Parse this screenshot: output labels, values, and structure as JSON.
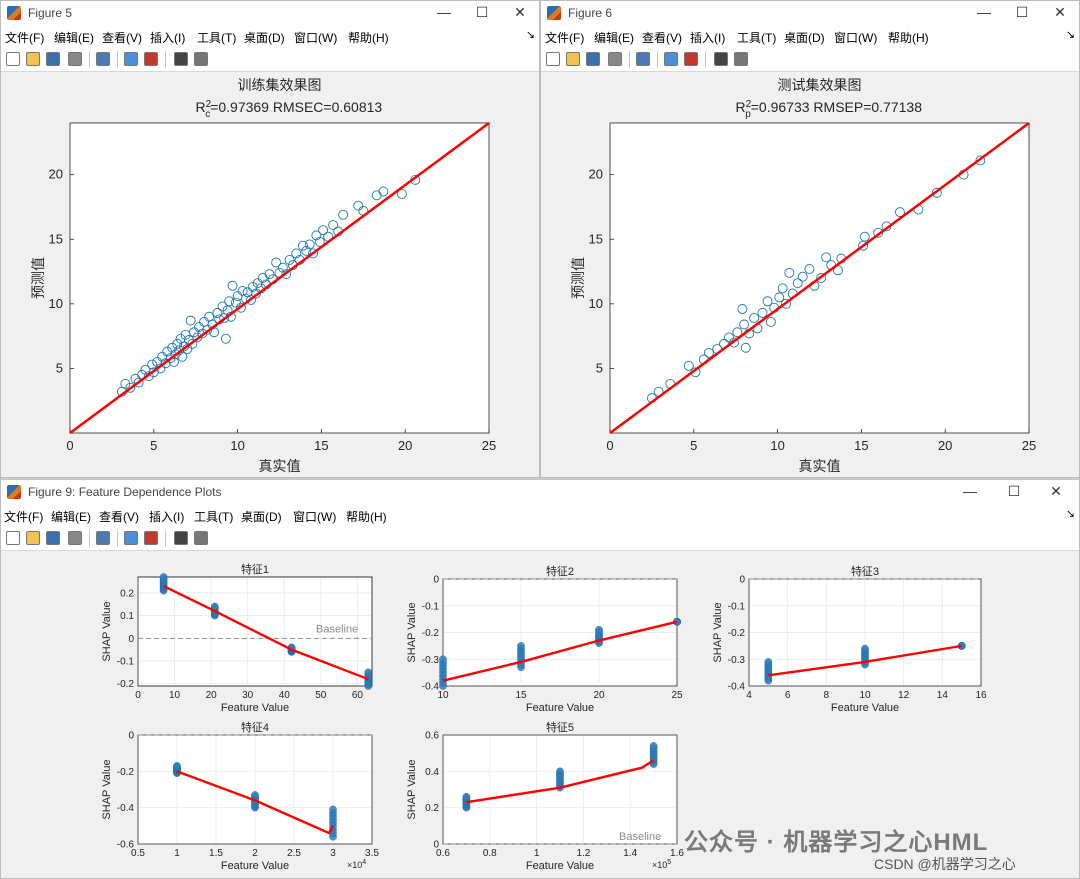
{
  "windows": [
    {
      "id": "w5",
      "title": "Figure 5",
      "axes_title": "训练集效果图",
      "metric_main": "R",
      "metric_sup": "2",
      "metric_sub": "c",
      "metric_rest": "=0.97369  RMSEC=0.60813",
      "xlabel": "真实值",
      "ylabel": "预测值"
    },
    {
      "id": "w6",
      "title": "Figure 6",
      "axes_title": "测试集效果图",
      "metric_main": "R",
      "metric_sup": "2",
      "metric_sub": "p",
      "metric_rest": "=0.96733  RMSEP=0.77138",
      "xlabel": "真实值",
      "ylabel": "预测值"
    },
    {
      "id": "w9",
      "title": "Figure 9: Feature Dependence Plots"
    }
  ],
  "menu": {
    "items": [
      "文件(F)",
      "编辑(E)",
      "查看(V)",
      "插入(I)",
      "工具(T)",
      "桌面(D)",
      "窗口(W)",
      "帮助(H)"
    ],
    "items_w9": [
      "文件(F)",
      "编辑(E)",
      "查看(V)",
      "插入(I)",
      "工具(T)",
      "桌面(D)",
      "窗口(W)",
      "帮助(H)"
    ]
  },
  "toolbar_icons": [
    "new-figure-icon",
    "open-icon",
    "save-icon",
    "print-icon",
    "link-plot-icon",
    "colorbar-icon",
    "legend-icon",
    "pointer-icon",
    "property-editor-icon"
  ],
  "watermark": "公众号 · 机器学习之心HML",
  "csdn_tag": "CSDN @机器学习之心",
  "colors": {
    "scatter": "#1f77b4",
    "fit_line": "#ff0000",
    "dep_points": "#2e7fc0",
    "baseline": "#b0b0b0"
  },
  "chart_data": [
    {
      "type": "scatter",
      "title": "训练集效果图",
      "subtitle": "R²c=0.97369  RMSEC=0.60813",
      "xlabel": "真实值",
      "ylabel": "预测值",
      "xlim": [
        0,
        25
      ],
      "ylim": [
        0,
        24
      ],
      "xticks": [
        0,
        5,
        10,
        15,
        20,
        25
      ],
      "yticks": [
        5,
        10,
        15,
        20
      ],
      "reference_line": {
        "x": [
          0,
          25
        ],
        "y": [
          0,
          24
        ]
      },
      "points": [
        [
          3.1,
          3.2
        ],
        [
          3.3,
          3.8
        ],
        [
          3.6,
          3.5
        ],
        [
          3.9,
          4.2
        ],
        [
          4.1,
          3.9
        ],
        [
          4.3,
          4.5
        ],
        [
          4.5,
          4.9
        ],
        [
          4.7,
          4.4
        ],
        [
          4.9,
          5.3
        ],
        [
          5.0,
          4.7
        ],
        [
          5.2,
          5.5
        ],
        [
          5.4,
          5.0
        ],
        [
          5.5,
          5.9
        ],
        [
          5.7,
          5.4
        ],
        [
          5.8,
          6.3
        ],
        [
          6.0,
          5.8
        ],
        [
          6.1,
          6.6
        ],
        [
          6.2,
          5.5
        ],
        [
          6.3,
          6.1
        ],
        [
          6.4,
          6.9
        ],
        [
          6.5,
          6.4
        ],
        [
          6.6,
          7.3
        ],
        [
          6.7,
          5.9
        ],
        [
          6.8,
          6.7
        ],
        [
          6.9,
          7.6
        ],
        [
          7.0,
          6.5
        ],
        [
          7.1,
          7.2
        ],
        [
          7.2,
          8.7
        ],
        [
          7.3,
          6.9
        ],
        [
          7.4,
          7.8
        ],
        [
          7.6,
          7.4
        ],
        [
          7.7,
          8.2
        ],
        [
          7.9,
          7.7
        ],
        [
          8.0,
          8.6
        ],
        [
          8.2,
          8.0
        ],
        [
          8.3,
          9.0
        ],
        [
          8.5,
          8.4
        ],
        [
          8.6,
          7.8
        ],
        [
          8.8,
          9.3
        ],
        [
          8.9,
          8.8
        ],
        [
          9.1,
          9.8
        ],
        [
          9.2,
          8.9
        ],
        [
          9.3,
          7.3
        ],
        [
          9.4,
          9.5
        ],
        [
          9.5,
          10.2
        ],
        [
          9.6,
          9.0
        ],
        [
          9.7,
          11.4
        ],
        [
          9.9,
          10.1
        ],
        [
          10.0,
          10.6
        ],
        [
          10.2,
          9.7
        ],
        [
          10.3,
          11.0
        ],
        [
          10.5,
          10.4
        ],
        [
          10.6,
          10.9
        ],
        [
          10.8,
          10.3
        ],
        [
          10.9,
          11.3
        ],
        [
          11.1,
          10.8
        ],
        [
          11.2,
          11.6
        ],
        [
          11.4,
          11.2
        ],
        [
          11.5,
          12.0
        ],
        [
          11.7,
          11.5
        ],
        [
          11.9,
          12.3
        ],
        [
          12.1,
          11.9
        ],
        [
          12.3,
          13.2
        ],
        [
          12.5,
          12.4
        ],
        [
          12.7,
          12.8
        ],
        [
          12.9,
          12.3
        ],
        [
          13.1,
          13.4
        ],
        [
          13.3,
          13.0
        ],
        [
          13.5,
          13.9
        ],
        [
          13.7,
          13.4
        ],
        [
          13.9,
          14.5
        ],
        [
          14.1,
          14.1
        ],
        [
          14.3,
          14.6
        ],
        [
          14.5,
          13.9
        ],
        [
          14.7,
          15.3
        ],
        [
          14.9,
          14.8
        ],
        [
          15.1,
          15.7
        ],
        [
          15.4,
          15.2
        ],
        [
          15.7,
          16.1
        ],
        [
          16.0,
          15.6
        ],
        [
          16.3,
          16.9
        ],
        [
          17.2,
          17.6
        ],
        [
          17.5,
          17.2
        ],
        [
          18.3,
          18.4
        ],
        [
          18.7,
          18.7
        ],
        [
          19.8,
          18.5
        ],
        [
          20.6,
          19.6
        ]
      ]
    },
    {
      "type": "scatter",
      "title": "测试集效果图",
      "subtitle": "R²p=0.96733  RMSEP=0.77138",
      "xlabel": "真实值",
      "ylabel": "预测值",
      "xlim": [
        0,
        25
      ],
      "ylim": [
        0,
        24
      ],
      "xticks": [
        0,
        5,
        10,
        15,
        20,
        25
      ],
      "yticks": [
        5,
        10,
        15,
        20
      ],
      "reference_line": {
        "x": [
          0,
          25
        ],
        "y": [
          0,
          24
        ]
      },
      "points": [
        [
          2.5,
          2.7
        ],
        [
          2.9,
          3.2
        ],
        [
          3.6,
          3.8
        ],
        [
          4.7,
          5.2
        ],
        [
          5.1,
          4.7
        ],
        [
          5.6,
          5.7
        ],
        [
          5.9,
          6.2
        ],
        [
          6.4,
          6.5
        ],
        [
          6.8,
          6.9
        ],
        [
          7.1,
          7.4
        ],
        [
          7.4,
          7.0
        ],
        [
          7.6,
          7.8
        ],
        [
          7.9,
          9.6
        ],
        [
          8.0,
          8.4
        ],
        [
          8.1,
          6.6
        ],
        [
          8.3,
          7.7
        ],
        [
          8.6,
          8.9
        ],
        [
          8.8,
          8.1
        ],
        [
          9.1,
          9.3
        ],
        [
          9.4,
          10.2
        ],
        [
          9.6,
          8.6
        ],
        [
          9.8,
          9.7
        ],
        [
          10.1,
          10.5
        ],
        [
          10.3,
          11.2
        ],
        [
          10.5,
          10.0
        ],
        [
          10.7,
          12.4
        ],
        [
          10.9,
          10.8
        ],
        [
          11.2,
          11.6
        ],
        [
          11.5,
          12.1
        ],
        [
          11.9,
          12.7
        ],
        [
          12.2,
          11.4
        ],
        [
          12.6,
          12.0
        ],
        [
          12.9,
          13.6
        ],
        [
          13.2,
          13.0
        ],
        [
          13.6,
          12.6
        ],
        [
          13.8,
          13.5
        ],
        [
          15.1,
          14.5
        ],
        [
          15.2,
          15.2
        ],
        [
          16.0,
          15.5
        ],
        [
          16.5,
          16.0
        ],
        [
          17.3,
          17.1
        ],
        [
          18.4,
          17.3
        ],
        [
          19.5,
          18.6
        ],
        [
          21.1,
          20.0
        ],
        [
          22.1,
          21.1
        ]
      ]
    },
    {
      "type": "line",
      "title": "特征1",
      "xlabel": "Feature Value",
      "ylabel": "SHAP Value",
      "xlim": [
        0,
        64
      ],
      "ylim": [
        -0.21,
        0.27
      ],
      "xticks": [
        0,
        10,
        20,
        30,
        40,
        50,
        60
      ],
      "yticks": [
        -0.2,
        -0.1,
        0,
        0.1,
        0.2
      ],
      "baseline": 0,
      "baseline_label": "Baseline",
      "x": [
        7,
        21,
        42,
        63
      ],
      "y": [
        0.23,
        0.12,
        -0.05,
        -0.18
      ],
      "clusters": [
        {
          "x": 7,
          "y": [
            0.21,
            0.27
          ]
        },
        {
          "x": 21,
          "y": [
            0.1,
            0.14
          ]
        },
        {
          "x": 42,
          "y": [
            -0.06,
            -0.04
          ]
        },
        {
          "x": 63,
          "y": [
            -0.21,
            -0.15
          ]
        }
      ]
    },
    {
      "type": "line",
      "title": "特征2",
      "xlabel": "Feature Value",
      "ylabel": "SHAP Value",
      "xlim": [
        10,
        25
      ],
      "ylim": [
        -0.4,
        0
      ],
      "xticks": [
        10,
        15,
        20,
        25
      ],
      "yticks": [
        -0.4,
        -0.3,
        -0.2,
        -0.1,
        0
      ],
      "baseline": 0,
      "x": [
        10,
        15,
        20,
        25
      ],
      "y": [
        -0.38,
        -0.31,
        -0.23,
        -0.16
      ],
      "clusters": [
        {
          "x": 10,
          "y": [
            -0.4,
            -0.3
          ]
        },
        {
          "x": 15,
          "y": [
            -0.33,
            -0.25
          ]
        },
        {
          "x": 20,
          "y": [
            -0.24,
            -0.19
          ]
        },
        {
          "x": 25,
          "y": [
            -0.16,
            -0.16
          ]
        }
      ]
    },
    {
      "type": "line",
      "title": "特征3",
      "xlabel": "Feature Value",
      "ylabel": "SHAP Value",
      "xlim": [
        4,
        16
      ],
      "ylim": [
        -0.4,
        0
      ],
      "xticks": [
        4,
        6,
        8,
        10,
        12,
        14,
        16
      ],
      "yticks": [
        -0.4,
        -0.3,
        -0.2,
        -0.1,
        0
      ],
      "baseline": 0,
      "x": [
        5,
        10,
        15
      ],
      "y": [
        -0.36,
        -0.31,
        -0.25
      ],
      "clusters": [
        {
          "x": 5,
          "y": [
            -0.38,
            -0.31
          ]
        },
        {
          "x": 10,
          "y": [
            -0.32,
            -0.26
          ]
        },
        {
          "x": 15,
          "y": [
            -0.25,
            -0.25
          ]
        }
      ]
    },
    {
      "type": "line",
      "title": "特征4",
      "xlabel": "Feature Value",
      "ylabel": "SHAP Value",
      "xlim": [
        0.5,
        3.5
      ],
      "ylim": [
        -0.6,
        0
      ],
      "x_multiplier": "×10^4",
      "xticks": [
        0.5,
        1,
        1.5,
        2,
        2.5,
        3,
        3.5
      ],
      "yticks": [
        -0.6,
        -0.4,
        -0.2,
        0
      ],
      "baseline": 0,
      "x": [
        1,
        2,
        2.95,
        3
      ],
      "y": [
        -0.2,
        -0.36,
        -0.54,
        -0.5
      ],
      "clusters": [
        {
          "x": 1,
          "y": [
            -0.21,
            -0.17
          ]
        },
        {
          "x": 2,
          "y": [
            -0.4,
            -0.33
          ]
        },
        {
          "x": 3,
          "y": [
            -0.56,
            -0.41
          ]
        }
      ]
    },
    {
      "type": "line",
      "title": "特征5",
      "xlabel": "Feature Value",
      "ylabel": "SHAP Value",
      "xlim": [
        0.6,
        1.6
      ],
      "ylim": [
        0,
        0.6
      ],
      "x_multiplier": "×10^5",
      "xticks": [
        0.6,
        0.8,
        1,
        1.2,
        1.4,
        1.6
      ],
      "yticks": [
        0,
        0.2,
        0.4,
        0.6
      ],
      "baseline": 0,
      "baseline_label": "Baseline",
      "x": [
        0.7,
        1.1,
        1.45,
        1.5
      ],
      "y": [
        0.23,
        0.31,
        0.42,
        0.46
      ],
      "clusters": [
        {
          "x": 0.7,
          "y": [
            0.2,
            0.26
          ]
        },
        {
          "x": 1.1,
          "y": [
            0.31,
            0.4
          ]
        },
        {
          "x": 1.5,
          "y": [
            0.44,
            0.54
          ]
        }
      ]
    }
  ]
}
